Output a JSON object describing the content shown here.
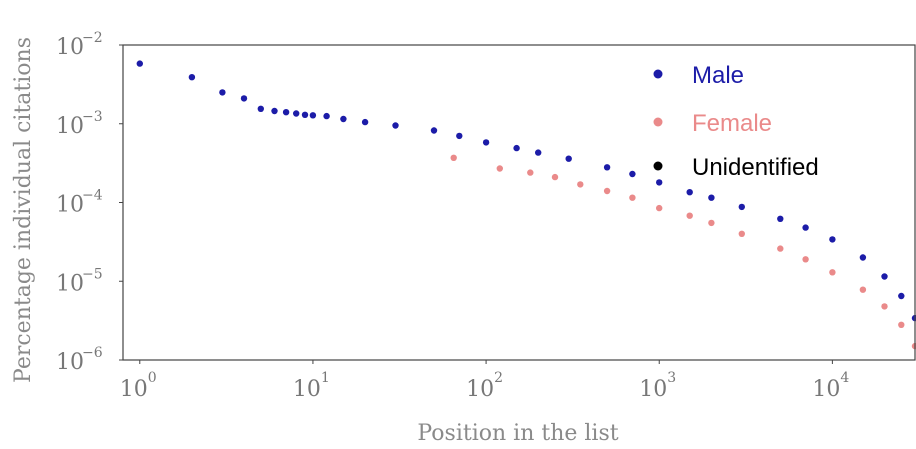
{
  "chart_data": {
    "type": "scatter",
    "xscale": "log",
    "yscale": "log",
    "xlim": [
      0.8,
      30000
    ],
    "ylim": [
      1e-06,
      0.01
    ],
    "xlabel": "Position in the list",
    "ylabel": "Percentage individual citations",
    "x_ticks": [
      {
        "base": "10",
        "exp": "0",
        "value": 1
      },
      {
        "base": "10",
        "exp": "1",
        "value": 10
      },
      {
        "base": "10",
        "exp": "2",
        "value": 100
      },
      {
        "base": "10",
        "exp": "3",
        "value": 1000
      },
      {
        "base": "10",
        "exp": "4",
        "value": 10000
      }
    ],
    "y_ticks": [
      {
        "base": "10",
        "exp": "−2",
        "value": 0.01
      },
      {
        "base": "10",
        "exp": "−3",
        "value": 0.001
      },
      {
        "base": "10",
        "exp": "−4",
        "value": 0.0001
      },
      {
        "base": "10",
        "exp": "−5",
        "value": 1e-05
      },
      {
        "base": "10",
        "exp": "−6",
        "value": 1e-06
      }
    ],
    "grid": false,
    "legend_position": "top-right",
    "series": [
      {
        "name": "Male",
        "color": "#1c1ca8",
        "points": [
          [
            1,
            0.0058
          ],
          [
            2,
            0.0039
          ],
          [
            3,
            0.0025
          ],
          [
            4,
            0.0021
          ],
          [
            5,
            0.00155
          ],
          [
            6,
            0.00145
          ],
          [
            7,
            0.0014
          ],
          [
            8,
            0.00135
          ],
          [
            9,
            0.0013
          ],
          [
            10,
            0.00128
          ],
          [
            12,
            0.00125
          ],
          [
            15,
            0.00115
          ],
          [
            20,
            0.00105
          ],
          [
            30,
            0.00095
          ],
          [
            50,
            0.00082
          ],
          [
            70,
            0.0007
          ],
          [
            100,
            0.00058
          ],
          [
            150,
            0.00049
          ],
          [
            200,
            0.00043
          ],
          [
            300,
            0.00036
          ],
          [
            500,
            0.00028
          ],
          [
            700,
            0.00023
          ],
          [
            1000,
            0.00018
          ],
          [
            1500,
            0.000135
          ],
          [
            2000,
            0.000115
          ],
          [
            3000,
            8.8e-05
          ],
          [
            5000,
            6.2e-05
          ],
          [
            7000,
            4.8e-05
          ],
          [
            10000,
            3.4e-05
          ],
          [
            15000,
            2e-05
          ],
          [
            20000,
            1.15e-05
          ],
          [
            25000,
            6.5e-06
          ],
          [
            30000,
            3.4e-06
          ]
        ]
      },
      {
        "name": "Female",
        "color": "#ea8a8a",
        "points": [
          [
            65,
            0.00037
          ],
          [
            120,
            0.00027
          ],
          [
            180,
            0.00024
          ],
          [
            250,
            0.00021
          ],
          [
            350,
            0.00017
          ],
          [
            500,
            0.00014
          ],
          [
            700,
            0.000115
          ],
          [
            1000,
            8.5e-05
          ],
          [
            1500,
            6.8e-05
          ],
          [
            2000,
            5.5e-05
          ],
          [
            3000,
            4e-05
          ],
          [
            5000,
            2.6e-05
          ],
          [
            7000,
            1.9e-05
          ],
          [
            10000,
            1.3e-05
          ],
          [
            15000,
            7.8e-06
          ],
          [
            20000,
            4.8e-06
          ],
          [
            25000,
            2.8e-06
          ],
          [
            30000,
            1.5e-06
          ]
        ]
      },
      {
        "name": "Unidentified",
        "color": "#000000",
        "points": []
      }
    ]
  }
}
